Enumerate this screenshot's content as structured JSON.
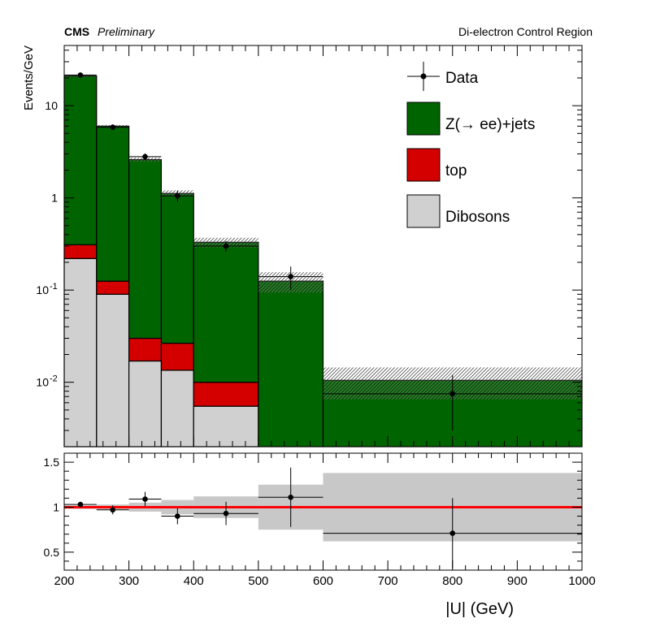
{
  "header": {
    "experiment": "CMS",
    "status": "Preliminary",
    "region": "Di-electron Control Region"
  },
  "chart_data": {
    "type": "bar",
    "subtype": "stacked-histogram-with-ratio",
    "xlabel": "|U| (GeV)",
    "ylabel": "Events/GeV",
    "xlim": [
      200,
      1000
    ],
    "ylim": [
      0.002,
      45
    ],
    "yscale": "log",
    "ratio_ylim": [
      0.3,
      1.6
    ],
    "bin_edges": [
      200,
      250,
      300,
      350,
      400,
      500,
      600,
      1000
    ],
    "x_ticks": [
      "200",
      "300",
      "400",
      "500",
      "600",
      "700",
      "800",
      "900",
      "1000"
    ],
    "y_ticks": [
      {
        "value": 10,
        "base": "10",
        "exp": ""
      },
      {
        "value": 1,
        "base": "1",
        "exp": ""
      },
      {
        "value": 0.1,
        "base": "10",
        "exp": "-1"
      },
      {
        "value": 0.01,
        "base": "10",
        "exp": "-2"
      }
    ],
    "ratio_ticks": [
      "0.5",
      "1",
      "1.5"
    ],
    "stack": [
      {
        "name": "Dibosons",
        "color": "#d0d0d0",
        "values": [
          0.22,
          0.09,
          0.017,
          0.0135,
          0.0055,
          0.0005,
          0.0
        ]
      },
      {
        "name": "top",
        "color": "#d40000",
        "values": [
          0.09,
          0.035,
          0.013,
          0.013,
          0.0045,
          0.0,
          0.0
        ]
      },
      {
        "name": "Z(→ ee)+jets",
        "color": "#006400",
        "values": [
          20.69,
          5.875,
          2.57,
          1.09,
          0.32,
          0.1245,
          0.0105
        ]
      }
    ],
    "totals": [
      21.0,
      6.0,
      2.6,
      1.12,
      0.33,
      0.125,
      0.0105
    ],
    "uncertainty_rel": [
      0.02,
      0.03,
      0.05,
      0.08,
      0.12,
      0.25,
      0.38
    ],
    "data": {
      "name": "Data",
      "x": [
        225,
        275,
        325,
        375,
        450,
        550,
        800
      ],
      "y": [
        21.5,
        5.85,
        2.8,
        1.05,
        0.3,
        0.14,
        0.0075
      ],
      "yerr": [
        0.65,
        0.35,
        0.24,
        0.15,
        0.04,
        0.04,
        0.0045
      ],
      "xerr": [
        25,
        25,
        25,
        25,
        50,
        50,
        200
      ]
    },
    "ratio": {
      "y": [
        1.03,
        0.97,
        1.09,
        0.9,
        0.93,
        1.11,
        0.71
      ],
      "yerr": [
        0.03,
        0.05,
        0.08,
        0.09,
        0.13,
        0.33,
        0.39
      ]
    },
    "legend": {
      "position": "top-right",
      "entries": [
        {
          "label": "Data",
          "style": "marker"
        },
        {
          "label": "Z(→ ee)+jets",
          "style": "fill",
          "color": "#006400"
        },
        {
          "label": "top",
          "style": "fill",
          "color": "#d40000"
        },
        {
          "label": "Dibosons",
          "style": "fill",
          "color": "#d0d0d0"
        }
      ]
    },
    "colors": {
      "ratio_line": "#ff0000",
      "band": "#c8c8c8"
    }
  }
}
